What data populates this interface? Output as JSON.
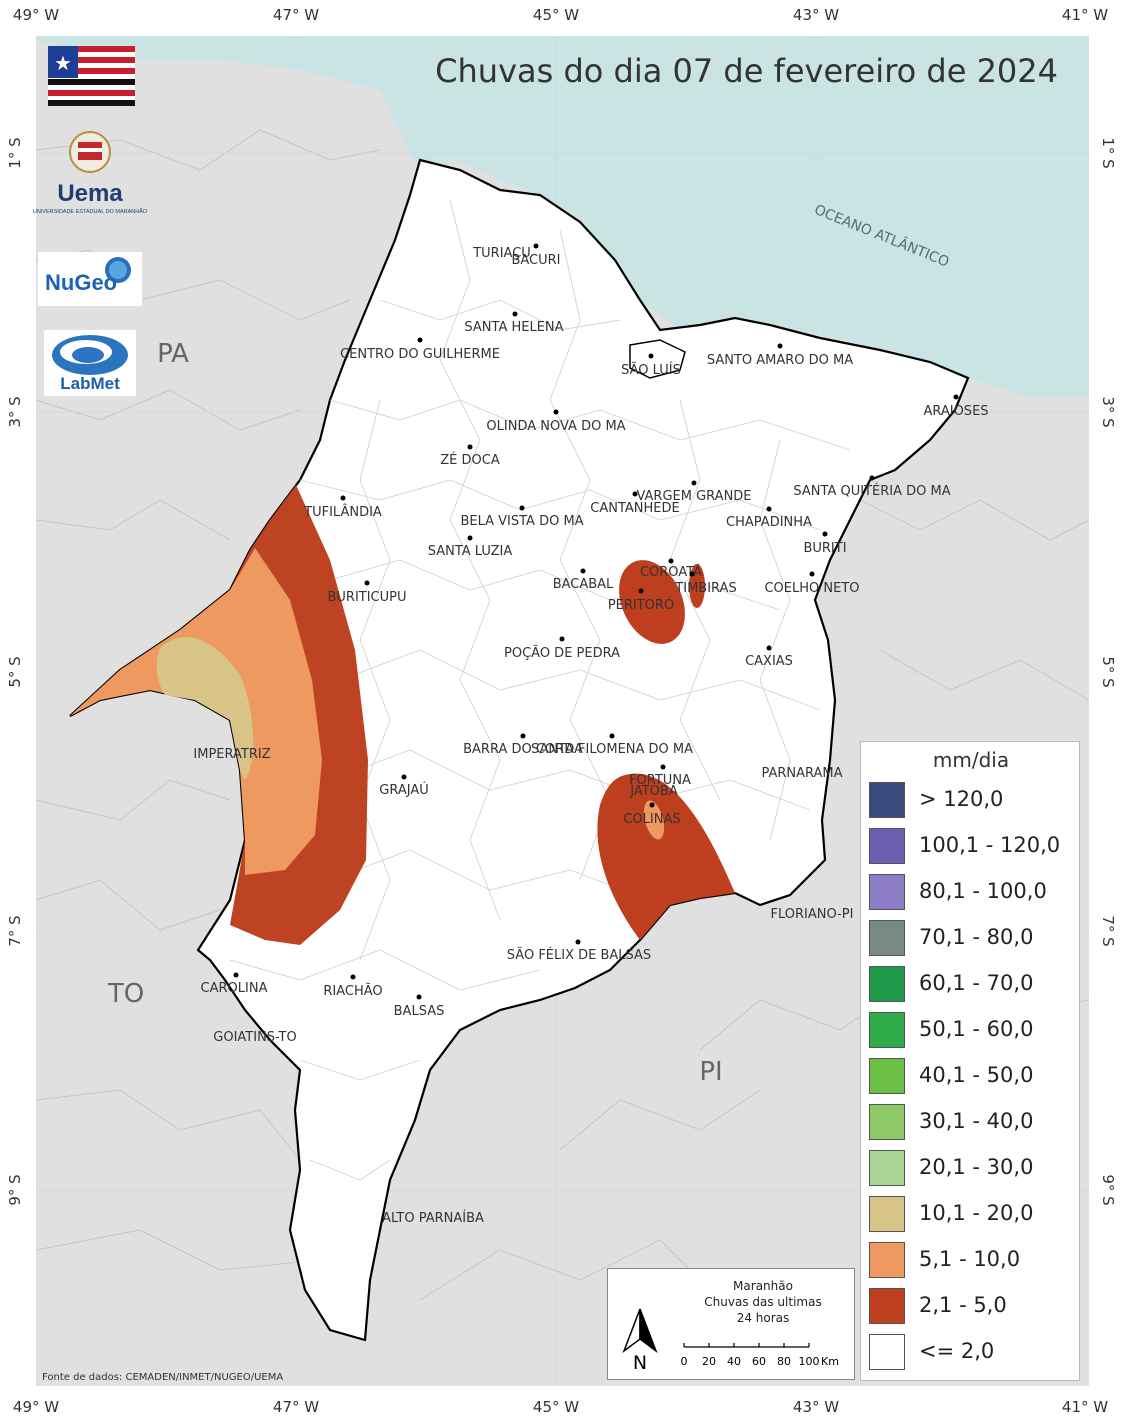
{
  "title": "Chuvas do dia 07 de fevereiro de 2024",
  "axes": {
    "top": [
      "49° W",
      "47° W",
      "45° W",
      "43° W",
      "41° W"
    ],
    "bottom": [
      "49° W",
      "47° W",
      "45° W",
      "43° W",
      "41° W"
    ],
    "left": [
      "1° S",
      "3° S",
      "5° S",
      "7° S",
      "9° S"
    ],
    "right": [
      "1° S",
      "3° S",
      "5° S",
      "7° S",
      "9° S"
    ]
  },
  "ocean_label": "OCEANO ATLÂNTICO",
  "states": {
    "pa": "PA",
    "to": "TO",
    "pi": "PI"
  },
  "cities": [
    "TURIAÇU",
    "BACURI",
    "SANTA HELENA",
    "CENTRO DO GUILHERME",
    "SÃO LUÍS",
    "SANTO AMARO DO MA",
    "ARAIOSES",
    "OLINDA NOVA DO MA",
    "ZÉ DOCA",
    "VARGEM GRANDE",
    "CANTANHEDE",
    "SANTA QUITÉRIA DO MA",
    "TUFILÂNDIA",
    "BELA VISTA DO MA",
    "CHAPADINHA",
    "SANTA LUZIA",
    "BURITI",
    "BURITICUPU",
    "BACABAL",
    "COROATÁ",
    "TIMBIRAS",
    "COELHO NETO",
    "PERITORÓ",
    "POÇÃO DE PEDRA",
    "CAXIAS",
    "IMPERATRIZ",
    "BARRA DO CORDA",
    "SANTA FILOMENA DO MA",
    "FORTUNA",
    "JATOBÁ",
    "PARNARAMA",
    "GRAJAÚ",
    "COLINAS",
    "FLORIANO-PI",
    "SÃO FÉLIX DE BALSAS",
    "CAROLINA",
    "RIACHÃO",
    "BALSAS",
    "GOIATINS-TO",
    "ALTO PARNAÍBA"
  ],
  "logos": {
    "uema": "Uema",
    "uema_sub": "UNIVERSIDADE ESTADUAL DO MARANHÃO",
    "nugeo": "NuGeo",
    "labmet": "LabMet"
  },
  "legend": {
    "title": "mm/dia",
    "items": [
      {
        "label": "> 120,0",
        "color": "#3b4a7c"
      },
      {
        "label": "100,1 - 120,0",
        "color": "#6a5fb0"
      },
      {
        "label": "80,1 - 100,0",
        "color": "#8d7cc6"
      },
      {
        "label": "70,1 - 80,0",
        "color": "#778a84"
      },
      {
        "label": "60,1 - 70,0",
        "color": "#1f9a4a"
      },
      {
        "label": "50,1 - 60,0",
        "color": "#2fab4a"
      },
      {
        "label": "40,1 - 50,0",
        "color": "#6cbf45"
      },
      {
        "label": "30,1 - 40,0",
        "color": "#8dc966"
      },
      {
        "label": "20,1 - 30,0",
        "color": "#a9d596"
      },
      {
        "label": "10,1 - 20,0",
        "color": "#d8c486"
      },
      {
        "label": "5,1 - 10,0",
        "color": "#ee9960"
      },
      {
        "label": "2,1 - 5,0",
        "color": "#bd3f1f"
      },
      {
        "label": "<= 2,0",
        "color": "#ffffff"
      }
    ]
  },
  "scale_box": {
    "line1": "Maranhão",
    "line2": "Chuvas das ultimas",
    "line3": "24 horas",
    "north": "N",
    "ticks": [
      "0",
      "20",
      "40",
      "60",
      "80",
      "100"
    ],
    "unit": "Km"
  },
  "source": "Fonte de dados: CEMADEN/INMET/NUGEO/UEMA"
}
